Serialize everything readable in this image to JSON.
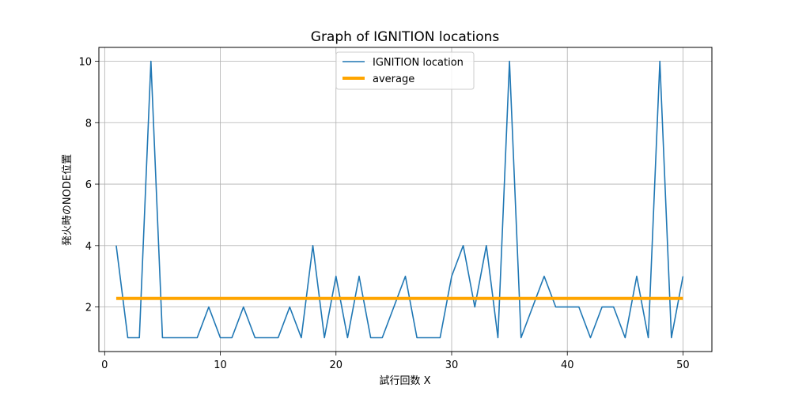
{
  "chart_data": {
    "type": "line",
    "title": "Graph of IGNITION locations",
    "xlabel": "試行回数 X",
    "ylabel": "発火時のNODE位置",
    "xlim": [
      -0.5,
      52.5
    ],
    "ylim": [
      0.55,
      10.45
    ],
    "xticks": [
      0,
      10,
      20,
      30,
      40,
      50
    ],
    "yticks": [
      2,
      4,
      6,
      8,
      10
    ],
    "grid": true,
    "legend_position": "top-center",
    "series": [
      {
        "name": "IGNITION location",
        "color": "#1f77b4",
        "x": [
          1,
          2,
          3,
          4,
          5,
          6,
          7,
          8,
          9,
          10,
          11,
          12,
          13,
          14,
          15,
          16,
          17,
          18,
          19,
          20,
          21,
          22,
          23,
          24,
          25,
          26,
          27,
          28,
          29,
          30,
          31,
          32,
          33,
          34,
          35,
          36,
          37,
          38,
          39,
          40,
          41,
          42,
          43,
          44,
          45,
          46,
          47,
          48,
          49,
          50
        ],
        "y": [
          4,
          1,
          1,
          10,
          1,
          1,
          1,
          1,
          2,
          1,
          1,
          2,
          1,
          1,
          1,
          2,
          1,
          4,
          1,
          3,
          1,
          3,
          1,
          1,
          2,
          3,
          1,
          1,
          1,
          3,
          4,
          2,
          4,
          1,
          10,
          1,
          2,
          3,
          2,
          2,
          2,
          1,
          2,
          2,
          1,
          3,
          1,
          10,
          1,
          3
        ]
      },
      {
        "name": "average",
        "color": "#ffa500",
        "x": [
          1,
          50
        ],
        "y": [
          2.28,
          2.28
        ]
      }
    ]
  }
}
